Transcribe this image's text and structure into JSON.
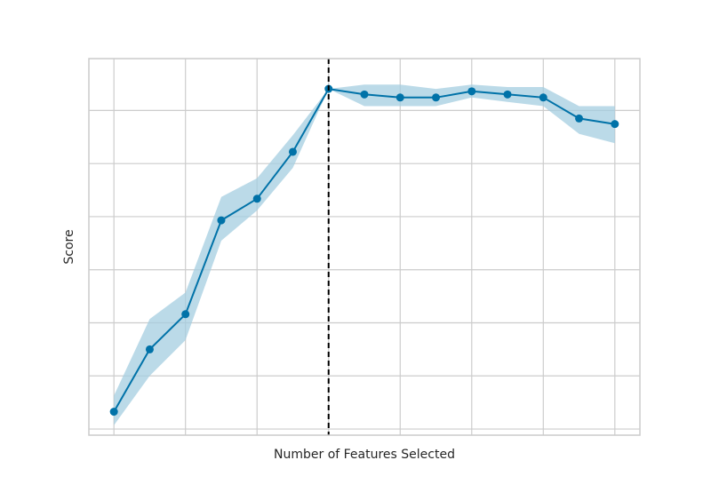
{
  "chart_data": {
    "type": "line",
    "title": "",
    "xlabel": "Number of Features Selected",
    "ylabel": "Score",
    "xlim": [
      0.3,
      15.7
    ],
    "ylim": [
      -0.1,
      6.0
    ],
    "grid": true,
    "x_gridlines": [
      1,
      3,
      5,
      7,
      9,
      11,
      13,
      15
    ],
    "y_gridlines": [
      0,
      0.86,
      1.72,
      2.58,
      3.44,
      4.3,
      5.16
    ],
    "series": [
      {
        "x": [
          1,
          2,
          3,
          4,
          5,
          6,
          7,
          8,
          9,
          10,
          11,
          12,
          13,
          14,
          15
        ],
        "values": [
          0.28,
          1.29,
          1.86,
          3.38,
          3.73,
          4.49,
          5.51,
          5.42,
          5.37,
          5.37,
          5.47,
          5.42,
          5.37,
          5.03,
          4.94
        ],
        "lower": [
          0.06,
          0.86,
          1.44,
          3.05,
          3.54,
          4.23,
          5.51,
          5.23,
          5.23,
          5.23,
          5.37,
          5.3,
          5.23,
          4.78,
          4.63
        ],
        "upper": [
          0.54,
          1.78,
          2.21,
          3.76,
          4.06,
          4.76,
          5.51,
          5.58,
          5.58,
          5.51,
          5.58,
          5.54,
          5.54,
          5.23,
          5.23
        ]
      }
    ],
    "optimal_x": 7,
    "colors": {
      "line": "#0072a8",
      "band": "#a4cde0",
      "optimal_marker": "#000000",
      "grid": "#cccccc",
      "frame": "#cccccc"
    }
  }
}
